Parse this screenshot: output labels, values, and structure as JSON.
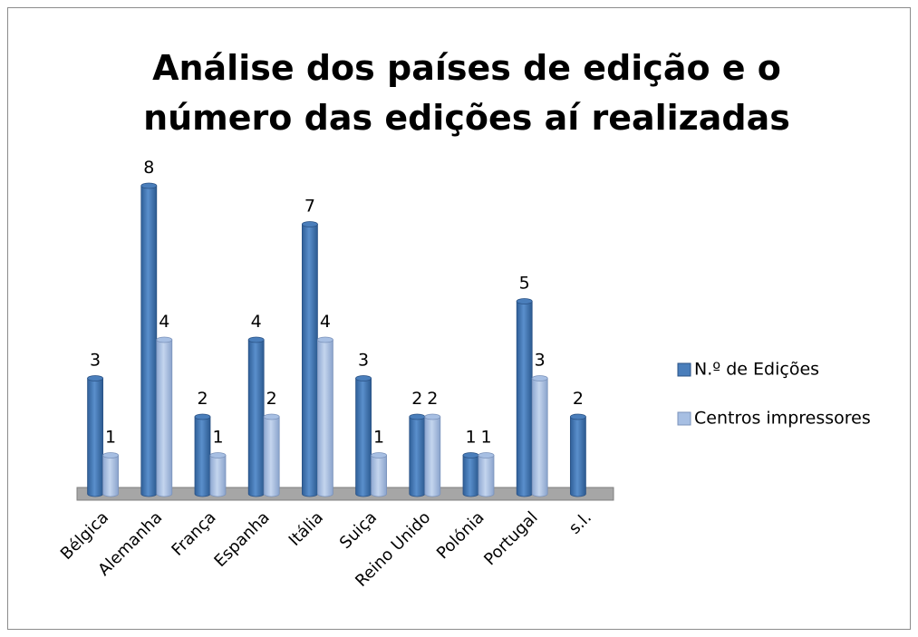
{
  "chart_data": {
    "type": "bar",
    "title": "Análise dos países de edição e o número das edições aí realizadas",
    "title_lines": [
      "Análise dos países de edição e o",
      "número das edições aí realizadas"
    ],
    "categories": [
      "Bélgica",
      "Alemanha",
      "França",
      "Espanha",
      "Itália",
      "Suiça",
      "Reino Unido",
      "Polónia",
      "Portugal",
      "s.l."
    ],
    "series": [
      {
        "name": "N.º de Edições",
        "color": "#4a7ebb",
        "values": [
          3,
          8,
          2,
          4,
          7,
          3,
          2,
          1,
          5,
          2
        ]
      },
      {
        "name": "Centros impressores",
        "color": "#a7bfe3",
        "values": [
          1,
          4,
          1,
          2,
          4,
          1,
          2,
          1,
          3,
          null
        ]
      }
    ],
    "legend": "right"
  }
}
